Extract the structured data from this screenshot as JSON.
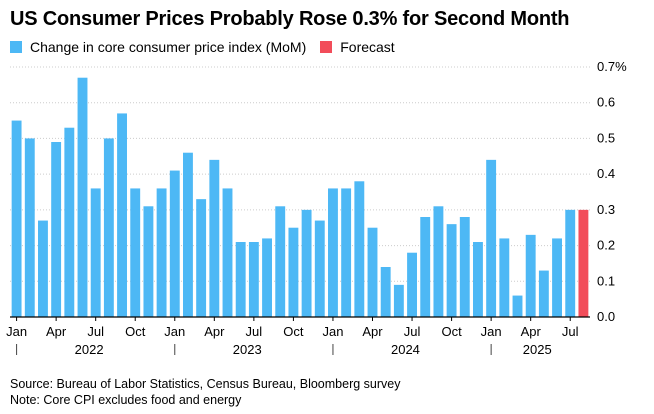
{
  "title": "US Consumer Prices Probably Rose 0.3% for Second Month",
  "footer": {
    "source": "Source: Bureau of Labor Statistics, Census Bureau, Bloomberg survey",
    "note": "Note: Core CPI excludes food and energy"
  },
  "colors": {
    "actual": "#4db8f5",
    "forecast": "#f24d5a",
    "axis": "#000000",
    "grid": "#cccccc"
  },
  "chart_data": {
    "type": "bar",
    "legend": [
      {
        "name": "Change in core consumer price index (MoM)",
        "color": "#4db8f5"
      },
      {
        "name": "Forecast",
        "color": "#f24d5a"
      }
    ],
    "y_axis": {
      "min": 0,
      "max": 0.7,
      "position": "right",
      "ticks": [
        {
          "value": 0.0,
          "label": "0.0"
        },
        {
          "value": 0.1,
          "label": "0.1"
        },
        {
          "value": 0.2,
          "label": "0.2"
        },
        {
          "value": 0.3,
          "label": "0.3"
        },
        {
          "value": 0.4,
          "label": "0.4"
        },
        {
          "value": 0.5,
          "label": "0.5"
        },
        {
          "value": 0.6,
          "label": "0.6"
        },
        {
          "value": 0.7,
          "label": "0.7%"
        }
      ]
    },
    "x_axis": {
      "month_ticks": [
        {
          "index": 0,
          "label": "Jan"
        },
        {
          "index": 3,
          "label": "Apr"
        },
        {
          "index": 6,
          "label": "Jul"
        },
        {
          "index": 9,
          "label": "Oct"
        },
        {
          "index": 12,
          "label": "Jan"
        },
        {
          "index": 15,
          "label": "Apr"
        },
        {
          "index": 18,
          "label": "Jul"
        },
        {
          "index": 21,
          "label": "Oct"
        },
        {
          "index": 24,
          "label": "Jan"
        },
        {
          "index": 27,
          "label": "Apr"
        },
        {
          "index": 30,
          "label": "Jul"
        },
        {
          "index": 33,
          "label": "Oct"
        },
        {
          "index": 36,
          "label": "Jan"
        },
        {
          "index": 39,
          "label": "Apr"
        },
        {
          "index": 42,
          "label": "Jul"
        }
      ],
      "years": [
        {
          "label": "2022",
          "start": 0,
          "end": 11
        },
        {
          "label": "2023",
          "start": 12,
          "end": 23
        },
        {
          "label": "2024",
          "start": 24,
          "end": 35
        },
        {
          "label": "2025",
          "start": 36,
          "end": 43
        }
      ]
    },
    "grid": true,
    "series": [
      {
        "name": "Change in core consumer price index (MoM)",
        "values": [
          0.55,
          0.5,
          0.27,
          0.49,
          0.53,
          0.67,
          0.36,
          0.5,
          0.57,
          0.36,
          0.31,
          0.36,
          0.41,
          0.46,
          0.33,
          0.44,
          0.36,
          0.21,
          0.21,
          0.22,
          0.31,
          0.25,
          0.3,
          0.27,
          0.36,
          0.36,
          0.38,
          0.25,
          0.14,
          0.09,
          0.18,
          0.28,
          0.31,
          0.26,
          0.28,
          0.21,
          0.44,
          0.22,
          0.06,
          0.23,
          0.13,
          0.22,
          0.3
        ]
      },
      {
        "name": "Forecast",
        "index": 43,
        "value": 0.3
      }
    ]
  }
}
